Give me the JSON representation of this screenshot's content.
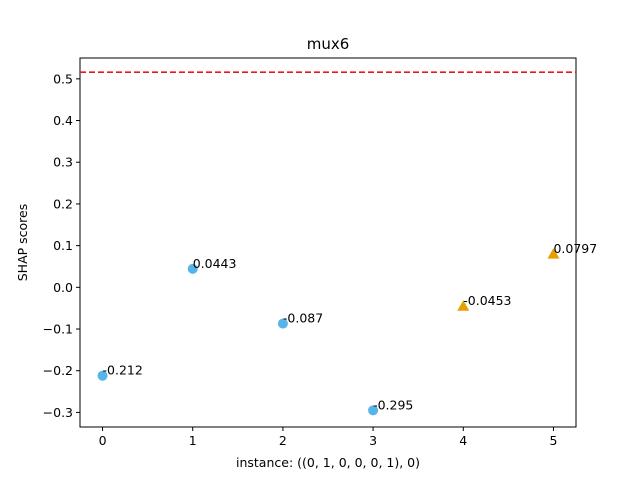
{
  "chart_data": {
    "type": "scatter",
    "title": "mux6",
    "xlabel": "instance: ((0, 1, 0, 0, 0, 1), 0)",
    "ylabel": "SHAP scores",
    "xlim": [
      -0.25,
      5.25
    ],
    "ylim": [
      -0.335,
      0.55
    ],
    "xticks": [
      0,
      1,
      2,
      3,
      4,
      5
    ],
    "xtick_labels": [
      "0",
      "1",
      "2",
      "3",
      "4",
      "5"
    ],
    "yticks": [
      -0.3,
      -0.2,
      -0.1,
      0.0,
      0.1,
      0.2,
      0.3,
      0.4,
      0.5
    ],
    "ytick_labels": [
      "−0.3",
      "−0.2",
      "−0.1",
      "0.0",
      "0.1",
      "0.2",
      "0.3",
      "0.4",
      "0.5"
    ],
    "grid": false,
    "reference_line": {
      "y": 0.516,
      "color": "#e41a1c",
      "style": "dashed"
    },
    "points": [
      {
        "x": 0,
        "y": -0.212,
        "label": "-0.212",
        "marker": "circle",
        "color": "#56b4e9"
      },
      {
        "x": 1,
        "y": 0.0443,
        "label": "0.0443",
        "marker": "circle",
        "color": "#56b4e9"
      },
      {
        "x": 2,
        "y": -0.087,
        "label": "-0.087",
        "marker": "circle",
        "color": "#56b4e9"
      },
      {
        "x": 3,
        "y": -0.295,
        "label": "-0.295",
        "marker": "circle",
        "color": "#56b4e9"
      },
      {
        "x": 4,
        "y": -0.0453,
        "label": "-0.0453",
        "marker": "triangle",
        "color": "#e69f00"
      },
      {
        "x": 5,
        "y": 0.0797,
        "label": "0.0797",
        "marker": "triangle",
        "color": "#e69f00"
      }
    ]
  }
}
